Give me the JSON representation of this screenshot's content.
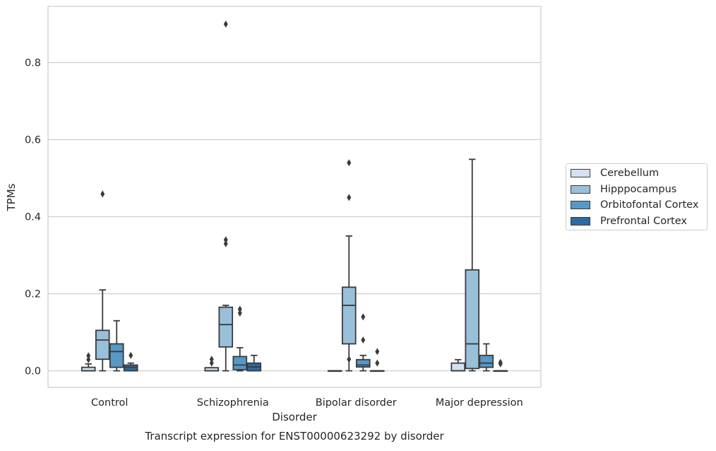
{
  "chart_data": {
    "type": "box",
    "title": "Transcript expression for ENST00000623292 by disorder",
    "xlabel": "Disorder",
    "ylabel": "TPMs",
    "ylim": [
      -0.043,
      0.946
    ],
    "yticks": [
      0.0,
      0.2,
      0.4,
      0.6,
      0.8
    ],
    "ytick_labels": [
      "0.0",
      "0.2",
      "0.4",
      "0.6",
      "0.8"
    ],
    "grid": "horizontal",
    "legend_position": "right",
    "categories": [
      "Control",
      "Schizophrenia",
      "Bipolar disorder",
      "Major depression"
    ],
    "series": [
      {
        "name": "Cerebellum",
        "color": "#d2e2f0",
        "boxes": [
          {
            "whislo": 0.0,
            "q1": 0.0,
            "med": 0.0,
            "q3": 0.009,
            "whishi": 0.018,
            "fliers": [
              0.029,
              0.039
            ]
          },
          {
            "whislo": 0.0,
            "q1": 0.0,
            "med": 0.0,
            "q3": 0.008,
            "whishi": 0.008,
            "fliers": [
              0.02,
              0.03
            ]
          },
          {
            "whislo": 0.0,
            "q1": 0.0,
            "med": 0.0,
            "q3": 0.0,
            "whishi": 0.0,
            "fliers": []
          },
          {
            "whislo": 0.0,
            "q1": 0.0,
            "med": 0.0,
            "q3": 0.02,
            "whishi": 0.029,
            "fliers": []
          }
        ]
      },
      {
        "name": "Hipppocampus",
        "color": "#99c0d9",
        "boxes": [
          {
            "whislo": 0.0,
            "q1": 0.03,
            "med": 0.08,
            "q3": 0.105,
            "whishi": 0.21,
            "fliers": [
              0.459
            ]
          },
          {
            "whislo": 0.0,
            "q1": 0.062,
            "med": 0.12,
            "q3": 0.165,
            "whishi": 0.17,
            "fliers": [
              0.33,
              0.34,
              0.9
            ]
          },
          {
            "whislo": 0.0,
            "q1": 0.07,
            "med": 0.17,
            "q3": 0.217,
            "whishi": 0.35,
            "fliers": [
              0.03,
              0.45,
              0.54
            ]
          },
          {
            "whislo": 0.0,
            "q1": 0.006,
            "med": 0.07,
            "q3": 0.262,
            "whishi": 0.549,
            "fliers": []
          }
        ]
      },
      {
        "name": "Orbitofontal Cortex",
        "color": "#5798c6",
        "boxes": [
          {
            "whislo": 0.0,
            "q1": 0.009,
            "med": 0.05,
            "q3": 0.07,
            "whishi": 0.13,
            "fliers": []
          },
          {
            "whislo": 0.0,
            "q1": 0.003,
            "med": 0.015,
            "q3": 0.037,
            "whishi": 0.06,
            "fliers": [
              0.15,
              0.16
            ]
          },
          {
            "whislo": 0.0,
            "q1": 0.01,
            "med": 0.015,
            "q3": 0.029,
            "whishi": 0.04,
            "fliers": [
              0.08,
              0.14
            ]
          },
          {
            "whislo": 0.0,
            "q1": 0.009,
            "med": 0.02,
            "q3": 0.04,
            "whishi": 0.07,
            "fliers": []
          }
        ]
      },
      {
        "name": "Prefrontal Cortex",
        "color": "#2c6aa6",
        "boxes": [
          {
            "whislo": 0.0,
            "q1": 0.0,
            "med": 0.009,
            "q3": 0.015,
            "whishi": 0.02,
            "fliers": [
              0.04
            ]
          },
          {
            "whislo": 0.0,
            "q1": 0.0,
            "med": 0.01,
            "q3": 0.02,
            "whishi": 0.04,
            "fliers": []
          },
          {
            "whislo": 0.0,
            "q1": 0.0,
            "med": 0.0,
            "q3": 0.0,
            "whishi": 0.0,
            "fliers": [
              0.02,
              0.05
            ]
          },
          {
            "whislo": 0.0,
            "q1": 0.0,
            "med": 0.0,
            "q3": 0.0,
            "whishi": 0.0,
            "fliers": [
              0.018,
              0.022
            ]
          }
        ]
      }
    ]
  }
}
